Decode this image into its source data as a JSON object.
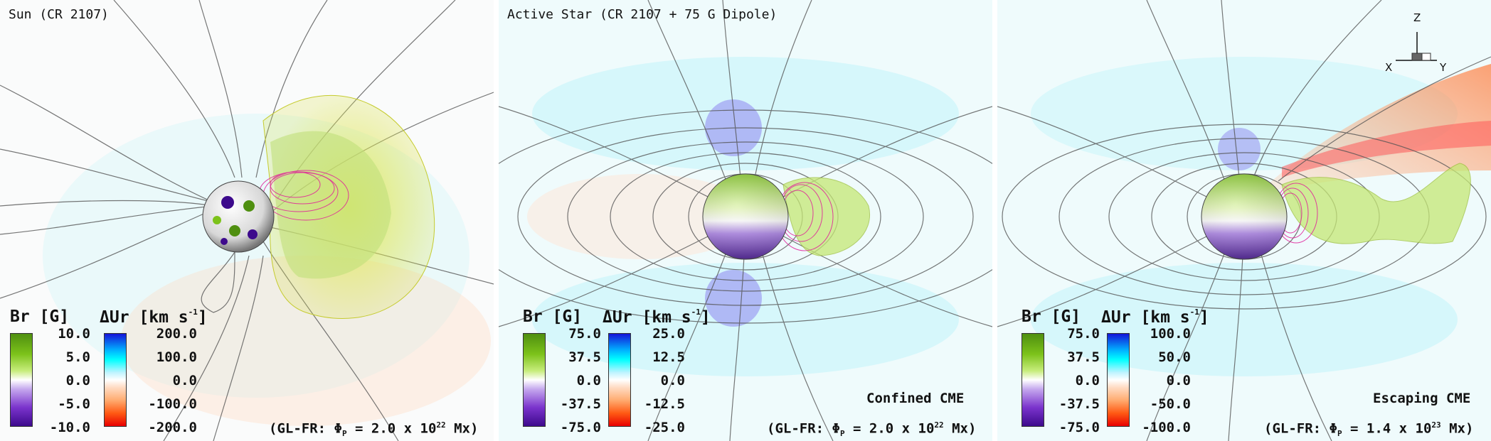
{
  "panels": [
    {
      "title": "Sun (CR 2107)",
      "br_header": "Br [G]",
      "dur_header": "ΔUr [km s",
      "dur_sup": "-1",
      "dur_close": "]",
      "br_ticks": [
        "10.0",
        "5.0",
        "0.0",
        "-5.0",
        "-10.0"
      ],
      "dur_ticks": [
        "200.0",
        "100.0",
        "0.0",
        "-100.0",
        "-200.0"
      ],
      "formula_prefix": "(GL-FR: Φ",
      "formula_sub": "P",
      "formula_mid": " = 2.0 x 10",
      "formula_exp": "22",
      "formula_suffix": " Mx)",
      "cme_label": ""
    },
    {
      "title": "Active Star (CR 2107 + 75 G Dipole)",
      "br_header": "Br [G]",
      "dur_header": "ΔUr [km s",
      "dur_sup": "-1",
      "dur_close": "]",
      "br_ticks": [
        "75.0",
        "37.5",
        "0.0",
        "-37.5",
        "-75.0"
      ],
      "dur_ticks": [
        "25.0",
        "12.5",
        "0.0",
        "-12.5",
        "-25.0"
      ],
      "formula_prefix": "(GL-FR: Φ",
      "formula_sub": "P",
      "formula_mid": " = 2.0 x 10",
      "formula_exp": "22",
      "formula_suffix": " Mx)",
      "cme_label": "Confined CME"
    },
    {
      "title": "",
      "br_header": "Br [G]",
      "dur_header": "ΔUr [km s",
      "dur_sup": "-1",
      "dur_close": "]",
      "br_ticks": [
        "75.0",
        "37.5",
        "0.0",
        "-37.5",
        "-75.0"
      ],
      "dur_ticks": [
        "100.0",
        "50.0",
        "0.0",
        "-50.0",
        "-100.0"
      ],
      "formula_prefix": "(GL-FR: Φ",
      "formula_sub": "P",
      "formula_mid": " = 1.4 x 10",
      "formula_exp": "23",
      "formula_suffix": " Mx)",
      "cme_label": "Escaping CME"
    }
  ],
  "axes": {
    "z": "Z",
    "x": "X",
    "y": "Y"
  },
  "colors": {
    "br_positive": "#4f8f10",
    "br_negative": "#3d0a8c",
    "dur_positive": "#1414d8",
    "dur_negative": "#e80000",
    "cme_isosurface": "#e4ea3c",
    "flux_rope": "#e0209a",
    "field_lines": "#555555"
  },
  "icons": [
    "star-sphere",
    "field-lines",
    "cme-isosurface",
    "axes-triad-icon"
  ]
}
